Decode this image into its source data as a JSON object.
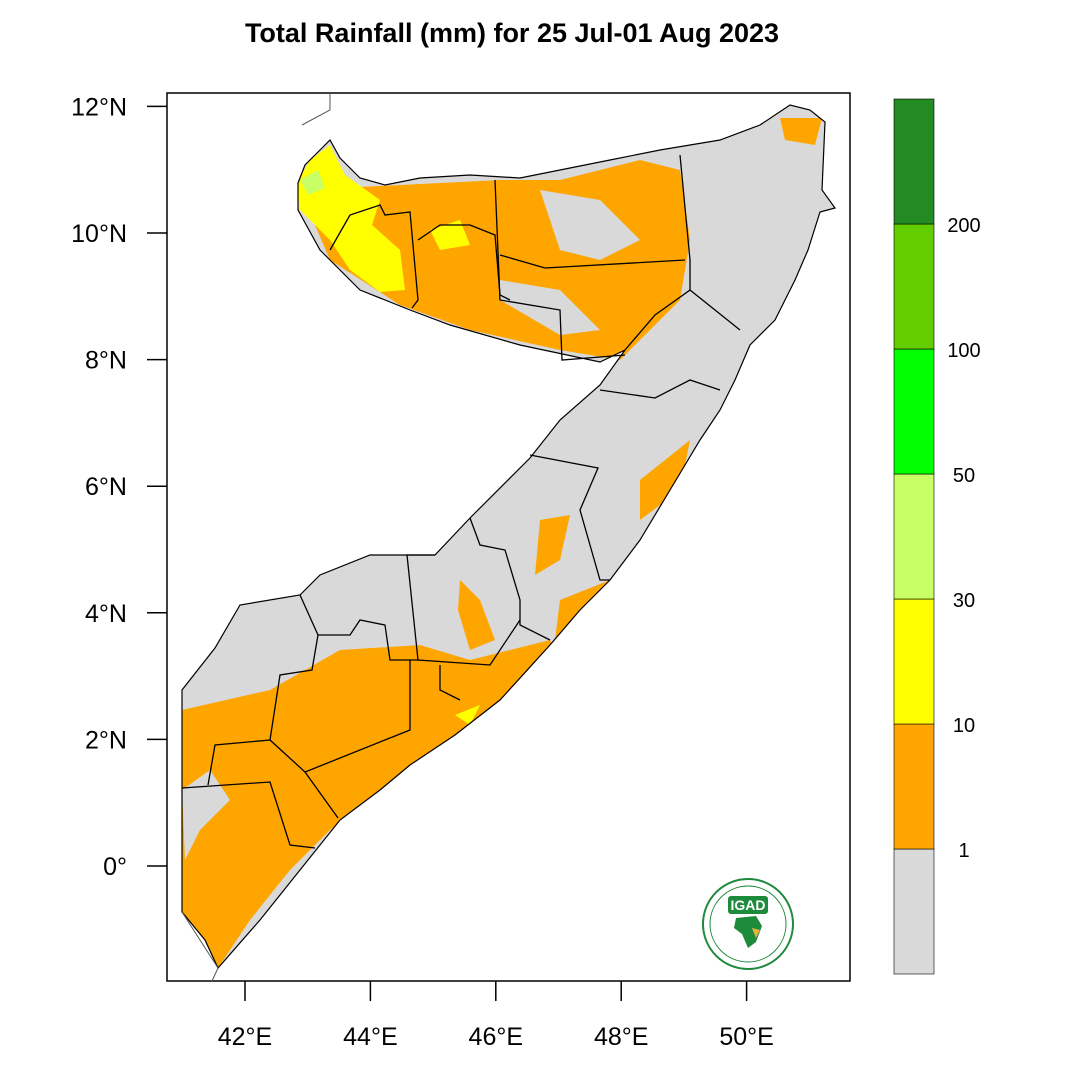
{
  "title": "Total Rainfall (mm) for 25 Jul-01 Aug 2023",
  "map": {
    "lon_range": [
      40.8,
      51.7
    ],
    "lat_range": [
      -1.8,
      12.2
    ],
    "lat_ticks": [
      {
        "value": 12,
        "label": "12°N"
      },
      {
        "value": 10,
        "label": "10°N"
      },
      {
        "value": 8,
        "label": "8°N"
      },
      {
        "value": 6,
        "label": "6°N"
      },
      {
        "value": 4,
        "label": "4°N"
      },
      {
        "value": 2,
        "label": "2°N"
      },
      {
        "value": 0,
        "label": "0°"
      }
    ],
    "lon_ticks": [
      {
        "value": 42,
        "label": "42°E"
      },
      {
        "value": 44,
        "label": "44°E"
      },
      {
        "value": 46,
        "label": "46°E"
      },
      {
        "value": 48,
        "label": "48°E"
      },
      {
        "value": 50,
        "label": "50°E"
      }
    ]
  },
  "colorbar": {
    "bins": [
      {
        "color": "#d9d9d9"
      },
      {
        "color": "#ffa500"
      },
      {
        "color": "#ffff00"
      },
      {
        "color": "#c8ff64"
      },
      {
        "color": "#00ff00"
      },
      {
        "color": "#64cd00"
      },
      {
        "color": "#228b22"
      }
    ],
    "labels": [
      "1",
      "10",
      "30",
      "50",
      "100",
      "200"
    ]
  },
  "logo": {
    "text": "IGAD",
    "color": "#1e8a3c"
  }
}
